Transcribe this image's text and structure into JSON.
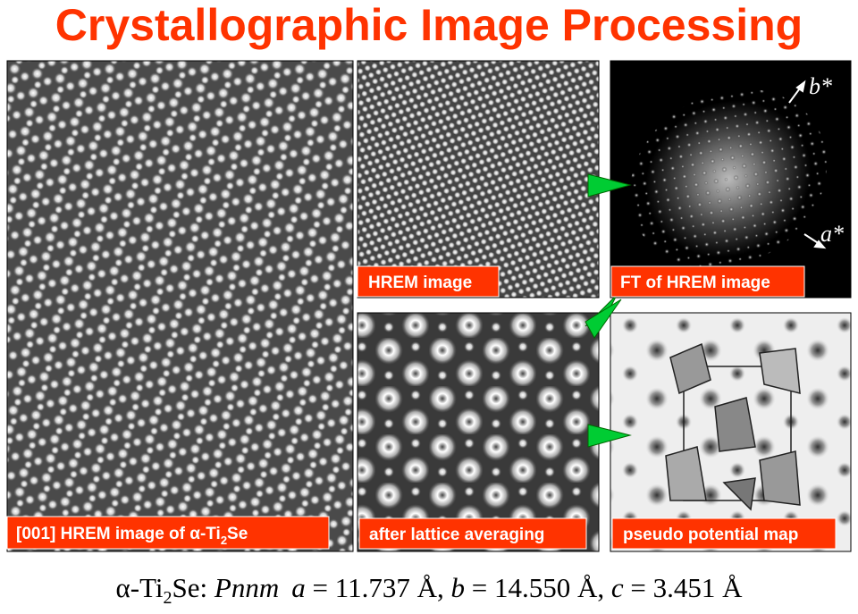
{
  "header": {
    "title": "Crystallographic Image Processing"
  },
  "panels": {
    "main": {
      "label": [
        "[001] HREM image of α-Ti",
        "2",
        "Se"
      ]
    },
    "hrem": {
      "label": "HREM image"
    },
    "ft": {
      "label": "FT of HREM image",
      "axis_b": "b*",
      "axis_a": "a*"
    },
    "averaged": {
      "label": "after lattice averaging"
    },
    "potential": {
      "label": "pseudo potential map"
    }
  },
  "footer": {
    "parts": [
      "α-Ti",
      "2",
      "Se: ",
      "Pnnm",
      "a",
      " = 11.737 Å, ",
      "b",
      " = 14.550 Å, ",
      "c",
      " = 3.451 Å"
    ]
  }
}
